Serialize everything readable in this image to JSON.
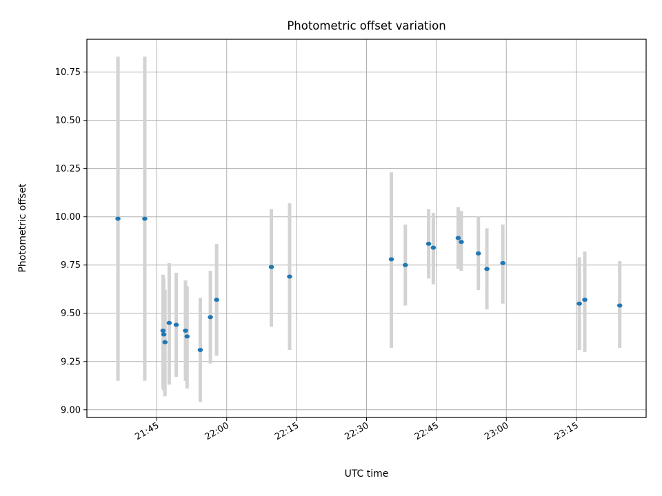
{
  "chart_data": {
    "type": "scatter",
    "title": "Photometric offset variation",
    "xlabel": "UTC time",
    "ylabel": "Photometric offset",
    "grid": true,
    "x_ticks": [
      "21:45",
      "22:00",
      "22:15",
      "22:30",
      "22:45",
      "23:00",
      "23:15"
    ],
    "y_ticks": [
      "9.00",
      "9.25",
      "9.50",
      "9.75",
      "10.00",
      "10.25",
      "10.50",
      "10.75"
    ],
    "xlim": [
      "21:30",
      "23:30"
    ],
    "ylim": [
      8.96,
      10.92
    ],
    "colors": {
      "point": "#1f77b4",
      "error_bar": "#d3d3d3",
      "grid": "#b0b0b0"
    },
    "series": [
      {
        "points": [
          {
            "x": "21:36:40",
            "y": 9.99,
            "ylo": 9.15,
            "yhi": 10.83
          },
          {
            "x": "21:42:25",
            "y": 9.99,
            "ylo": 9.15,
            "yhi": 10.83
          },
          {
            "x": "21:46:20",
            "y": 9.41,
            "ylo": 9.11,
            "yhi": 9.7
          },
          {
            "x": "21:46:30",
            "y": 9.39,
            "ylo": 9.1,
            "yhi": 9.68
          },
          {
            "x": "21:46:45",
            "y": 9.35,
            "ylo": 9.07,
            "yhi": 9.62
          },
          {
            "x": "21:47:40",
            "y": 9.45,
            "ylo": 9.13,
            "yhi": 9.76
          },
          {
            "x": "21:49:10",
            "y": 9.44,
            "ylo": 9.17,
            "yhi": 9.71
          },
          {
            "x": "21:51:10",
            "y": 9.41,
            "ylo": 9.15,
            "yhi": 9.67
          },
          {
            "x": "21:51:30",
            "y": 9.38,
            "ylo": 9.11,
            "yhi": 9.64
          },
          {
            "x": "21:54:20",
            "y": 9.31,
            "ylo": 9.04,
            "yhi": 9.58
          },
          {
            "x": "21:56:30",
            "y": 9.48,
            "ylo": 9.24,
            "yhi": 9.72
          },
          {
            "x": "21:57:50",
            "y": 9.57,
            "ylo": 9.28,
            "yhi": 9.86
          },
          {
            "x": "22:09:35",
            "y": 9.74,
            "ylo": 9.43,
            "yhi": 10.04
          },
          {
            "x": "22:13:30",
            "y": 9.69,
            "ylo": 9.31,
            "yhi": 10.07
          },
          {
            "x": "22:35:20",
            "y": 9.78,
            "ylo": 9.32,
            "yhi": 10.23
          },
          {
            "x": "22:38:20",
            "y": 9.75,
            "ylo": 9.54,
            "yhi": 9.96
          },
          {
            "x": "22:43:20",
            "y": 9.86,
            "ylo": 9.68,
            "yhi": 10.04
          },
          {
            "x": "22:44:20",
            "y": 9.84,
            "ylo": 9.65,
            "yhi": 10.02
          },
          {
            "x": "22:49:40",
            "y": 9.89,
            "ylo": 9.73,
            "yhi": 10.05
          },
          {
            "x": "22:50:20",
            "y": 9.87,
            "ylo": 9.72,
            "yhi": 10.03
          },
          {
            "x": "22:54:00",
            "y": 9.81,
            "ylo": 9.62,
            "yhi": 10.0
          },
          {
            "x": "22:55:50",
            "y": 9.73,
            "ylo": 9.52,
            "yhi": 9.94
          },
          {
            "x": "22:59:15",
            "y": 9.76,
            "ylo": 9.55,
            "yhi": 9.96
          },
          {
            "x": "23:15:40",
            "y": 9.55,
            "ylo": 9.31,
            "yhi": 9.79
          },
          {
            "x": "23:16:50",
            "y": 9.57,
            "ylo": 9.3,
            "yhi": 9.82
          },
          {
            "x": "23:24:20",
            "y": 9.54,
            "ylo": 9.32,
            "yhi": 9.77
          }
        ]
      }
    ]
  }
}
